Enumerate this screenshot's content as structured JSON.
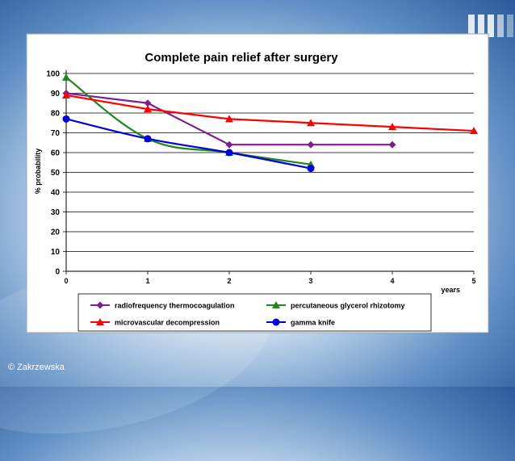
{
  "copyright": "© Zakrzewska",
  "chart_data": {
    "type": "line",
    "title": "Complete pain relief after surgery",
    "xlabel": "years",
    "ylabel": "% probability",
    "xlim": [
      0,
      5
    ],
    "ylim": [
      0,
      100
    ],
    "x_ticks": [
      "0",
      "1",
      "2",
      "3",
      "4",
      "5"
    ],
    "y_ticks": [
      "0",
      "10",
      "20",
      "30",
      "40",
      "50",
      "60",
      "70",
      "80",
      "90",
      "100"
    ],
    "grid": true,
    "legend_position": "bottom",
    "series": [
      {
        "name": "radiofrequency thermocoagulation",
        "color": "#7f1f8f",
        "marker": "diamond",
        "smooth": false,
        "x": [
          0,
          1,
          2,
          3,
          4
        ],
        "y": [
          90,
          85,
          64,
          64,
          64
        ]
      },
      {
        "name": "percutaneous glycerol rhizotomy",
        "color": "#1a8a1a",
        "marker": "triangle",
        "smooth": true,
        "x": [
          0,
          1,
          2,
          3
        ],
        "y": [
          98,
          67,
          60,
          54
        ]
      },
      {
        "name": "microvascular decompression",
        "color": "#ff0000",
        "marker": "triangle",
        "smooth": false,
        "x": [
          0,
          1,
          2,
          3,
          4,
          5
        ],
        "y": [
          89,
          82,
          77,
          75,
          73,
          71
        ]
      },
      {
        "name": "gamma knife",
        "color": "#0000dd",
        "marker": "circle",
        "smooth": true,
        "x": [
          0,
          1,
          2,
          3
        ],
        "y": [
          77,
          67,
          60,
          52
        ]
      }
    ]
  }
}
